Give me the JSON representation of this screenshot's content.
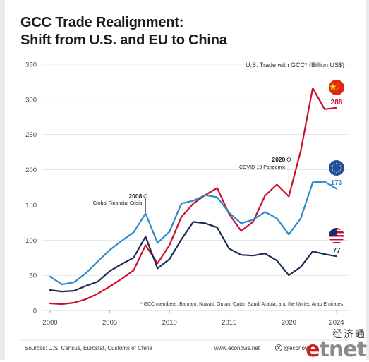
{
  "header": {
    "title_line1": "GCC Trade Realignment:",
    "title_line2": "Shift from U.S. and EU to China"
  },
  "colors": {
    "china": "#c8102e",
    "eu": "#2a8bc9",
    "us": "#1b2b54",
    "grid": "#d9d9d9",
    "axis_text": "#444444"
  },
  "chart_data": {
    "type": "line",
    "ylabel": "U.S. Trade with GCC* (Billion US$)",
    "xlabel": "",
    "xlim": [
      2000,
      2024
    ],
    "ylim": [
      0,
      350
    ],
    "x_ticks": [
      2000,
      2005,
      2010,
      2015,
      2020,
      2024
    ],
    "y_ticks": [
      0,
      50,
      100,
      150,
      200,
      250,
      300,
      350
    ],
    "grid": true,
    "x": [
      2000,
      2001,
      2002,
      2003,
      2004,
      2005,
      2006,
      2007,
      2008,
      2009,
      2010,
      2011,
      2012,
      2013,
      2014,
      2015,
      2016,
      2017,
      2018,
      2019,
      2020,
      2021,
      2022,
      2023,
      2024
    ],
    "series": [
      {
        "key": "china",
        "icon": "china-flag-icon",
        "end_label": "288",
        "values": [
          10,
          9,
          11,
          16,
          24,
          34,
          45,
          57,
          93,
          67,
          93,
          133,
          152,
          164,
          174,
          137,
          113,
          126,
          163,
          179,
          162,
          227,
          316,
          286,
          288
        ]
      },
      {
        "key": "eu",
        "icon": "eu-flag-icon",
        "end_label": "173",
        "values": [
          48,
          37,
          40,
          53,
          70,
          86,
          99,
          111,
          138,
          96,
          112,
          152,
          156,
          164,
          161,
          139,
          124,
          129,
          140,
          131,
          108,
          131,
          182,
          183,
          173
        ]
      },
      {
        "key": "us",
        "icon": "us-flag-icon",
        "end_label": "77",
        "values": [
          29,
          27,
          28,
          35,
          41,
          56,
          66,
          75,
          105,
          60,
          73,
          101,
          126,
          124,
          118,
          88,
          79,
          78,
          81,
          71,
          50,
          62,
          84,
          80,
          77
        ]
      }
    ],
    "annotations": [
      {
        "year_label": "2008",
        "text": "Global Financial Crisis",
        "x": 2008,
        "y": 138
      },
      {
        "year_label": "2020",
        "text": "COVID-19 Pandemic",
        "x": 2020,
        "y": 215
      }
    ],
    "footnote": "* GCC members: Bahrain, Kuwait, Oman, Qatar, Saudi Arabia, and the United Arab Emirates"
  },
  "footer": {
    "sources": "Sources: U.S. Census, Eurostat, Customs of China",
    "website": "www.econovis.net",
    "social": "@econovis"
  },
  "watermark": {
    "chinese": "经济通",
    "logo_e": "e",
    "logo_rest": "tnet"
  }
}
